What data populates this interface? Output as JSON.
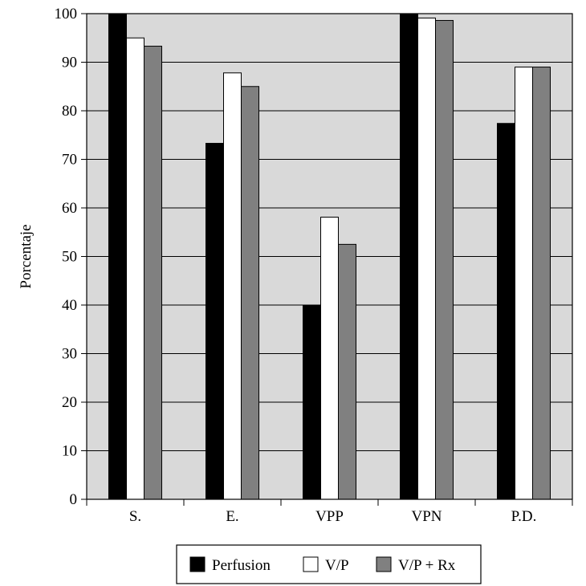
{
  "chart_data": {
    "type": "bar",
    "categories": [
      "S.",
      "E.",
      "VPP",
      "VPN",
      "P.D."
    ],
    "series": [
      {
        "name": "Perfusion",
        "values": [
          100,
          73.3,
          40,
          100,
          77.4
        ],
        "color": "#000000"
      },
      {
        "name": "V/P",
        "values": [
          95,
          87.8,
          58.1,
          99.1,
          89
        ],
        "color": "#ffffff"
      },
      {
        "name": "V/P + Rx",
        "values": [
          93.3,
          85,
          52.5,
          98.6,
          89
        ],
        "color": "#808080"
      }
    ],
    "ylabel": "Porcentaje",
    "xlabel": "",
    "title": "",
    "ylim": [
      0,
      100
    ],
    "yticks": [
      0,
      10,
      20,
      30,
      40,
      50,
      60,
      70,
      80,
      90,
      100
    ],
    "grid": true,
    "legend_position": "bottom",
    "plot_background": "#d9d9d9"
  }
}
